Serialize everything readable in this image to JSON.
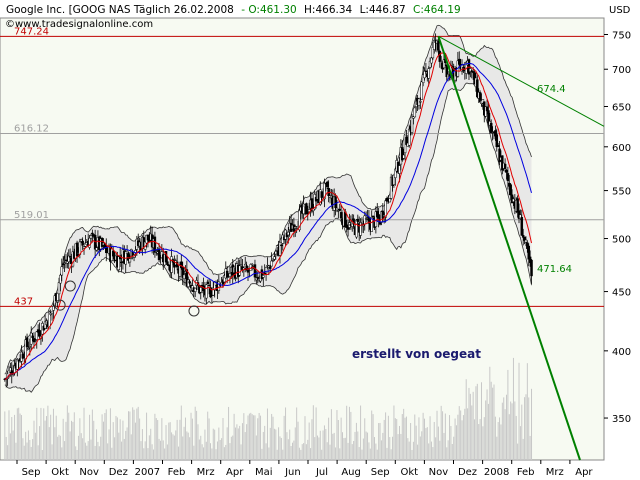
{
  "header": {
    "instrument": "Google Inc. [GOOG NAS Täglich 26.02.2008",
    "open": "- O:461.30",
    "high": "H:466.34",
    "low": "L:446.87",
    "close": "C:464.19",
    "website": "www.tradesignalonline.com"
  },
  "annotation": "erstellt von oegeat",
  "colors": {
    "open_text": "#008000",
    "close_text": "#008000",
    "horizontal_red": "#c00000",
    "horizontal_gray": "#a0a0a0",
    "trend_green": "#008000",
    "ma_red": "#e00000",
    "ma_blue": "#0000e0",
    "band_fill": "#e6e6e6",
    "plot_bg": "#f7faf2"
  },
  "chart_data": {
    "type": "candlestick",
    "currency": "USD",
    "scale": "log",
    "ylim": [
      322,
      775
    ],
    "y_ticks": [
      350,
      400,
      450,
      500,
      550,
      600,
      650,
      700,
      750
    ],
    "x_ticks": [
      "Sep",
      "Okt",
      "Nov",
      "Dez",
      "2007",
      "Feb",
      "Mrz",
      "Apr",
      "Mai",
      "Jun",
      "Jul",
      "Aug",
      "Sep",
      "Okt",
      "Nov",
      "Dez",
      "2008",
      "Feb",
      "Mrz",
      "Apr"
    ],
    "horizontal_levels": [
      {
        "value": 747.24,
        "label": "747.24",
        "color": "red"
      },
      {
        "value": 616.12,
        "label": "616.12",
        "color": "gray"
      },
      {
        "value": 519.01,
        "label": "519.01",
        "color": "gray"
      },
      {
        "value": 437,
        "label": "437",
        "color": "red"
      }
    ],
    "trend_labels": [
      {
        "label": "674.4",
        "value": 674.4
      },
      {
        "label": "471.64",
        "value": 471.64
      }
    ],
    "price_path": [
      {
        "month": "Aug 2006",
        "close": 378
      },
      {
        "month": "Sep 2006",
        "close": 402
      },
      {
        "month": "Okt 2006",
        "close": 430
      },
      {
        "month": "Okt 2006",
        "close": 475
      },
      {
        "month": "Nov 2006",
        "close": 500
      },
      {
        "month": "Dez 2006",
        "close": 480
      },
      {
        "month": "Jan 2007",
        "close": 500
      },
      {
        "month": "Feb 2007",
        "close": 470
      },
      {
        "month": "Mrz 2007",
        "close": 448
      },
      {
        "month": "Apr 2007",
        "close": 470
      },
      {
        "month": "Mai 2007",
        "close": 465
      },
      {
        "month": "Jun 2007",
        "close": 515
      },
      {
        "month": "Jul 2007",
        "close": 550
      },
      {
        "month": "Aug 2007",
        "close": 510
      },
      {
        "month": "Sep 2007",
        "close": 520
      },
      {
        "month": "Okt 2007",
        "close": 620
      },
      {
        "month": "Nov 2007",
        "close": 740
      },
      {
        "month": "Nov 2007",
        "close": 690
      },
      {
        "month": "Dez 2007",
        "close": 710
      },
      {
        "month": "Jan 2008",
        "close": 600
      },
      {
        "month": "Feb 2008",
        "close": 520
      },
      {
        "month": "Feb 2008",
        "close": 464.19
      }
    ]
  }
}
